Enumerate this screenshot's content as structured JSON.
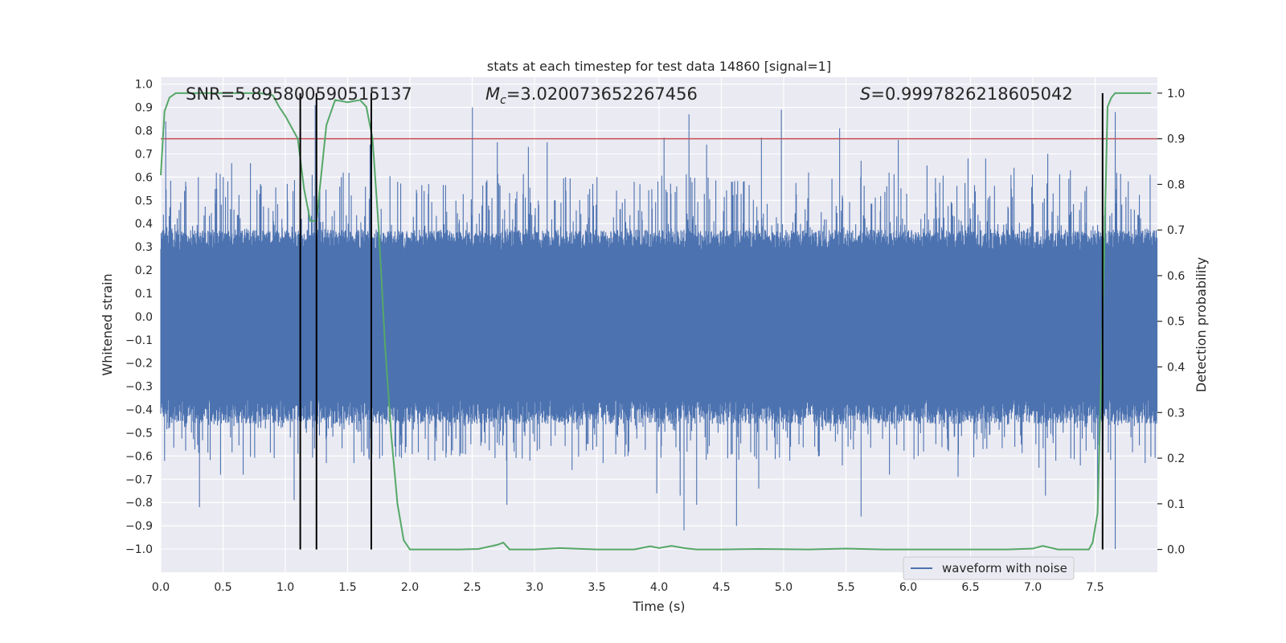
{
  "chart_data": {
    "type": "line",
    "title": "stats at each timestep for test data 14860 [signal=1]",
    "xlabel": "Time (s)",
    "ylabel_left": "Whitened strain",
    "ylabel_right": "Detection probability",
    "xlim": [
      0,
      8
    ],
    "ylim_left": [
      -1.1,
      1.03
    ],
    "ylim_right": [
      -0.05,
      1.035
    ],
    "x_ticks": [
      "0.0",
      "0.5",
      "1.0",
      "1.5",
      "2.0",
      "2.5",
      "3.0",
      "3.5",
      "4.0",
      "4.5",
      "5.0",
      "5.5",
      "6.0",
      "6.5",
      "7.0",
      "7.5"
    ],
    "y_ticks_left": [
      "1.0",
      "0.9",
      "0.8",
      "0.7",
      "0.6",
      "0.5",
      "0.4",
      "0.3",
      "0.2",
      "0.1",
      "0.0",
      "-0.1",
      "-0.2",
      "-0.3",
      "-0.4",
      "-0.5",
      "-0.6",
      "-0.7",
      "-0.8",
      "-0.9",
      "-1.0"
    ],
    "y_ticks_right": [
      "1.0",
      "0.9",
      "0.8",
      "0.7",
      "0.6",
      "0.5",
      "0.4",
      "0.3",
      "0.2",
      "0.1",
      "0.0"
    ],
    "grid": true,
    "annotations": {
      "snr": "SNR=5.895800590515137",
      "mc_symbol": "M",
      "mc_sub": "c",
      "mc_value": "=3.020073652267456",
      "s_symbol": "S",
      "s_value": "=0.9997826218605042"
    },
    "threshold": 0.9,
    "vlines": [
      1.12,
      1.25,
      1.69,
      7.56
    ],
    "series": [
      {
        "name": "waveform with noise",
        "axis": "left",
        "color": "#4c72b0",
        "band_typical": [
          -0.42,
          0.34
        ],
        "peaks_pos": [
          [
            0.04,
            0.84
          ],
          [
            0.2,
            0.58
          ],
          [
            0.3,
            0.6
          ],
          [
            0.45,
            0.55
          ],
          [
            0.5,
            0.6
          ],
          [
            0.57,
            0.66
          ],
          [
            0.72,
            0.66
          ],
          [
            0.8,
            0.57
          ],
          [
            1.06,
            0.54
          ],
          [
            1.13,
            0.42
          ],
          [
            1.24,
            0.91
          ],
          [
            1.45,
            0.6
          ],
          [
            1.68,
            0.74
          ],
          [
            1.9,
            0.58
          ],
          [
            2.15,
            0.57
          ],
          [
            2.5,
            0.9
          ],
          [
            2.7,
            0.75
          ],
          [
            2.95,
            0.73
          ],
          [
            3.1,
            0.75
          ],
          [
            3.25,
            0.6
          ],
          [
            3.5,
            0.6
          ],
          [
            3.8,
            0.58
          ],
          [
            4.04,
            0.77
          ],
          [
            4.24,
            0.87
          ],
          [
            4.38,
            0.74
          ],
          [
            4.58,
            0.58
          ],
          [
            4.82,
            0.77
          ],
          [
            4.98,
            0.89
          ],
          [
            5.2,
            0.62
          ],
          [
            5.45,
            0.81
          ],
          [
            5.62,
            0.67
          ],
          [
            5.92,
            0.76
          ],
          [
            6.15,
            0.65
          ],
          [
            6.48,
            0.68
          ],
          [
            6.62,
            0.68
          ],
          [
            6.85,
            0.64
          ],
          [
            7.12,
            0.7
          ],
          [
            7.3,
            0.63
          ],
          [
            7.66,
            0.88
          ],
          [
            7.94,
            0.61
          ]
        ],
        "peaks_neg": [
          [
            0.03,
            -0.62
          ],
          [
            0.31,
            -0.82
          ],
          [
            0.48,
            -0.68
          ],
          [
            0.66,
            -0.68
          ],
          [
            1.07,
            -0.79
          ],
          [
            1.17,
            -0.5
          ],
          [
            1.33,
            -0.63
          ],
          [
            1.55,
            -0.63
          ],
          [
            1.88,
            -0.56
          ],
          [
            2.2,
            -0.62
          ],
          [
            2.4,
            -0.6
          ],
          [
            2.78,
            -0.81
          ],
          [
            3.04,
            -0.57
          ],
          [
            3.3,
            -0.66
          ],
          [
            3.55,
            -0.63
          ],
          [
            3.75,
            -0.6
          ],
          [
            3.98,
            -0.76
          ],
          [
            4.17,
            -0.77
          ],
          [
            4.2,
            -0.92
          ],
          [
            4.3,
            -0.81
          ],
          [
            4.55,
            -0.61
          ],
          [
            4.62,
            -0.9
          ],
          [
            4.8,
            -0.74
          ],
          [
            5.05,
            -0.62
          ],
          [
            5.25,
            -0.56
          ],
          [
            5.47,
            -0.64
          ],
          [
            5.62,
            -0.86
          ],
          [
            5.85,
            -0.68
          ],
          [
            6.08,
            -0.6
          ],
          [
            6.4,
            -0.69
          ],
          [
            6.6,
            -0.57
          ],
          [
            7.05,
            -0.65
          ],
          [
            7.1,
            -0.77
          ],
          [
            7.38,
            -0.64
          ],
          [
            7.52,
            -0.79
          ],
          [
            7.66,
            -1.0
          ],
          [
            7.9,
            -0.63
          ]
        ]
      },
      {
        "name": "",
        "axis": "right",
        "color": "#55a868",
        "x": [
          0.0,
          0.03,
          0.07,
          0.12,
          0.2,
          0.4,
          0.6,
          0.8,
          0.9,
          0.95,
          1.0,
          1.1,
          1.15,
          1.2,
          1.25,
          1.28,
          1.33,
          1.4,
          1.5,
          1.6,
          1.65,
          1.7,
          1.75,
          1.8,
          1.85,
          1.9,
          1.95,
          2.0,
          2.2,
          2.4,
          2.55,
          2.7,
          2.75,
          2.8,
          3.0,
          3.2,
          3.5,
          3.8,
          3.93,
          4.0,
          4.1,
          4.2,
          4.3,
          4.5,
          4.8,
          5.2,
          5.5,
          5.8,
          6.2,
          6.5,
          6.8,
          7.0,
          7.08,
          7.2,
          7.35,
          7.45,
          7.48,
          7.52,
          7.56,
          7.6,
          7.63,
          7.66,
          7.7,
          7.8,
          7.95
        ],
        "y": [
          0.82,
          0.96,
          0.99,
          1.0,
          1.0,
          1.0,
          1.0,
          1.0,
          0.995,
          0.97,
          0.95,
          0.9,
          0.79,
          0.72,
          0.72,
          0.8,
          0.93,
          0.985,
          0.98,
          0.985,
          0.97,
          0.9,
          0.7,
          0.45,
          0.25,
          0.1,
          0.02,
          0.0,
          0.0,
          0.0,
          0.001,
          0.01,
          0.015,
          0.0,
          0.0,
          0.003,
          0.0,
          0.0,
          0.007,
          0.003,
          0.008,
          0.003,
          0.0,
          0.0,
          0.001,
          0.0,
          0.002,
          0.0,
          0.0,
          0.0,
          0.0,
          0.002,
          0.008,
          0.0,
          0.0,
          0.0,
          0.015,
          0.08,
          0.5,
          0.97,
          0.99,
          1.0,
          1.0,
          1.0,
          1.0
        ]
      }
    ]
  }
}
